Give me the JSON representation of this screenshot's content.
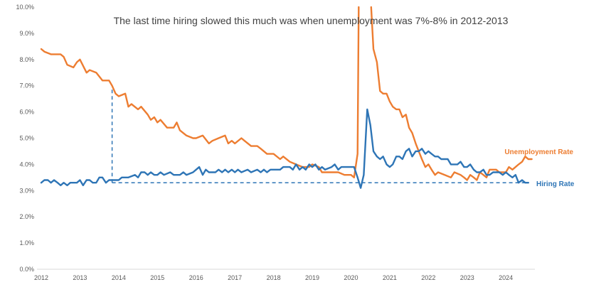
{
  "chart_data": {
    "type": "line",
    "title": "The last time hiring slowed this much was when unemployment was 7%-8% in 2012-2013",
    "xlabel": "",
    "ylabel": "",
    "x_ticks": [
      "2012",
      "2013",
      "2014",
      "2015",
      "2016",
      "2017",
      "2018",
      "2019",
      "2020",
      "2021",
      "2022",
      "2023",
      "2024"
    ],
    "xlim": [
      2012,
      2024.75
    ],
    "ylim": [
      0,
      10
    ],
    "y_ticks": [
      "0.0%",
      "1.0%",
      "2.0%",
      "3.0%",
      "4.0%",
      "5.0%",
      "6.0%",
      "7.0%",
      "8.0%",
      "9.0%",
      "10.0%"
    ],
    "y_tick_values": [
      0,
      1,
      2,
      3,
      4,
      5,
      6,
      7,
      8,
      9,
      10
    ],
    "grid": false,
    "series": [
      {
        "name": "Unemployment Rate",
        "color": "#ED7D31",
        "points": [
          [
            2012.0,
            8.4
          ],
          [
            2012.08,
            8.3
          ],
          [
            2012.25,
            8.2
          ],
          [
            2012.5,
            8.2
          ],
          [
            2012.58,
            8.1
          ],
          [
            2012.67,
            7.8
          ],
          [
            2012.83,
            7.7
          ],
          [
            2012.92,
            7.9
          ],
          [
            2013.0,
            8.0
          ],
          [
            2013.17,
            7.5
          ],
          [
            2013.25,
            7.6
          ],
          [
            2013.42,
            7.5
          ],
          [
            2013.58,
            7.2
          ],
          [
            2013.75,
            7.2
          ],
          [
            2013.83,
            7.0
          ],
          [
            2013.92,
            6.7
          ],
          [
            2014.0,
            6.6
          ],
          [
            2014.17,
            6.7
          ],
          [
            2014.25,
            6.2
          ],
          [
            2014.33,
            6.3
          ],
          [
            2014.5,
            6.1
          ],
          [
            2014.58,
            6.2
          ],
          [
            2014.75,
            5.9
          ],
          [
            2014.83,
            5.7
          ],
          [
            2014.92,
            5.8
          ],
          [
            2015.0,
            5.6
          ],
          [
            2015.08,
            5.7
          ],
          [
            2015.25,
            5.4
          ],
          [
            2015.42,
            5.4
          ],
          [
            2015.5,
            5.6
          ],
          [
            2015.58,
            5.3
          ],
          [
            2015.75,
            5.1
          ],
          [
            2015.92,
            5.0
          ],
          [
            2016.0,
            5.0
          ],
          [
            2016.17,
            5.1
          ],
          [
            2016.33,
            4.8
          ],
          [
            2016.42,
            4.9
          ],
          [
            2016.58,
            5.0
          ],
          [
            2016.75,
            5.1
          ],
          [
            2016.83,
            4.8
          ],
          [
            2016.92,
            4.9
          ],
          [
            2017.0,
            4.8
          ],
          [
            2017.17,
            5.0
          ],
          [
            2017.25,
            4.9
          ],
          [
            2017.42,
            4.7
          ],
          [
            2017.58,
            4.7
          ],
          [
            2017.67,
            4.6
          ],
          [
            2017.83,
            4.4
          ],
          [
            2017.92,
            4.4
          ],
          [
            2018.0,
            4.4
          ],
          [
            2018.17,
            4.2
          ],
          [
            2018.25,
            4.3
          ],
          [
            2018.42,
            4.1
          ],
          [
            2018.58,
            4.0
          ],
          [
            2018.75,
            3.9
          ],
          [
            2018.92,
            3.9
          ],
          [
            2019.0,
            4.0
          ],
          [
            2019.17,
            3.9
          ],
          [
            2019.25,
            3.7
          ],
          [
            2019.5,
            3.7
          ],
          [
            2019.67,
            3.7
          ],
          [
            2019.83,
            3.6
          ],
          [
            2019.92,
            3.6
          ],
          [
            2020.0,
            3.6
          ],
          [
            2020.08,
            3.5
          ],
          [
            2020.17,
            4.4
          ],
          [
            2020.2,
            10.0
          ]
        ],
        "points_after_break": [
          [
            2020.52,
            10.0
          ],
          [
            2020.58,
            8.4
          ],
          [
            2020.67,
            7.9
          ],
          [
            2020.75,
            6.8
          ],
          [
            2020.83,
            6.7
          ],
          [
            2020.92,
            6.7
          ],
          [
            2021.0,
            6.4
          ],
          [
            2021.08,
            6.2
          ],
          [
            2021.17,
            6.1
          ],
          [
            2021.25,
            6.1
          ],
          [
            2021.33,
            5.8
          ],
          [
            2021.42,
            5.9
          ],
          [
            2021.5,
            5.4
          ],
          [
            2021.58,
            5.2
          ],
          [
            2021.67,
            4.8
          ],
          [
            2021.75,
            4.5
          ],
          [
            2021.83,
            4.2
          ],
          [
            2021.92,
            3.9
          ],
          [
            2022.0,
            4.0
          ],
          [
            2022.08,
            3.8
          ],
          [
            2022.17,
            3.6
          ],
          [
            2022.25,
            3.7
          ],
          [
            2022.42,
            3.6
          ],
          [
            2022.58,
            3.5
          ],
          [
            2022.67,
            3.7
          ],
          [
            2022.83,
            3.6
          ],
          [
            2022.92,
            3.5
          ],
          [
            2023.0,
            3.4
          ],
          [
            2023.08,
            3.6
          ],
          [
            2023.17,
            3.5
          ],
          [
            2023.25,
            3.4
          ],
          [
            2023.33,
            3.7
          ],
          [
            2023.42,
            3.6
          ],
          [
            2023.5,
            3.5
          ],
          [
            2023.58,
            3.8
          ],
          [
            2023.75,
            3.8
          ],
          [
            2023.83,
            3.7
          ],
          [
            2023.92,
            3.7
          ],
          [
            2024.0,
            3.7
          ],
          [
            2024.08,
            3.9
          ],
          [
            2024.17,
            3.8
          ],
          [
            2024.25,
            3.9
          ],
          [
            2024.33,
            4.0
          ],
          [
            2024.42,
            4.1
          ],
          [
            2024.5,
            4.3
          ],
          [
            2024.58,
            4.2
          ],
          [
            2024.67,
            4.2
          ]
        ]
      },
      {
        "name": "Hiring Rate",
        "color": "#2E75B6",
        "points": [
          [
            2012.0,
            3.3
          ],
          [
            2012.08,
            3.4
          ],
          [
            2012.17,
            3.4
          ],
          [
            2012.25,
            3.3
          ],
          [
            2012.33,
            3.4
          ],
          [
            2012.42,
            3.3
          ],
          [
            2012.5,
            3.2
          ],
          [
            2012.58,
            3.3
          ],
          [
            2012.67,
            3.2
          ],
          [
            2012.75,
            3.3
          ],
          [
            2012.92,
            3.3
          ],
          [
            2013.0,
            3.4
          ],
          [
            2013.08,
            3.2
          ],
          [
            2013.17,
            3.4
          ],
          [
            2013.25,
            3.4
          ],
          [
            2013.33,
            3.3
          ],
          [
            2013.42,
            3.3
          ],
          [
            2013.5,
            3.5
          ],
          [
            2013.58,
            3.5
          ],
          [
            2013.67,
            3.3
          ],
          [
            2013.75,
            3.4
          ],
          [
            2013.92,
            3.4
          ],
          [
            2014.0,
            3.4
          ],
          [
            2014.08,
            3.5
          ],
          [
            2014.25,
            3.5
          ],
          [
            2014.42,
            3.6
          ],
          [
            2014.5,
            3.5
          ],
          [
            2014.58,
            3.7
          ],
          [
            2014.67,
            3.7
          ],
          [
            2014.75,
            3.6
          ],
          [
            2014.83,
            3.7
          ],
          [
            2014.92,
            3.6
          ],
          [
            2015.0,
            3.6
          ],
          [
            2015.08,
            3.7
          ],
          [
            2015.17,
            3.6
          ],
          [
            2015.33,
            3.7
          ],
          [
            2015.42,
            3.6
          ],
          [
            2015.58,
            3.6
          ],
          [
            2015.67,
            3.7
          ],
          [
            2015.75,
            3.6
          ],
          [
            2015.92,
            3.7
          ],
          [
            2016.0,
            3.8
          ],
          [
            2016.08,
            3.9
          ],
          [
            2016.17,
            3.6
          ],
          [
            2016.25,
            3.8
          ],
          [
            2016.33,
            3.7
          ],
          [
            2016.5,
            3.7
          ],
          [
            2016.58,
            3.8
          ],
          [
            2016.67,
            3.7
          ],
          [
            2016.75,
            3.8
          ],
          [
            2016.83,
            3.7
          ],
          [
            2016.92,
            3.8
          ],
          [
            2017.0,
            3.7
          ],
          [
            2017.08,
            3.8
          ],
          [
            2017.17,
            3.7
          ],
          [
            2017.33,
            3.8
          ],
          [
            2017.42,
            3.7
          ],
          [
            2017.58,
            3.8
          ],
          [
            2017.67,
            3.7
          ],
          [
            2017.75,
            3.8
          ],
          [
            2017.83,
            3.7
          ],
          [
            2017.92,
            3.8
          ],
          [
            2018.0,
            3.8
          ],
          [
            2018.17,
            3.8
          ],
          [
            2018.25,
            3.9
          ],
          [
            2018.42,
            3.9
          ],
          [
            2018.5,
            3.8
          ],
          [
            2018.58,
            4.0
          ],
          [
            2018.67,
            3.8
          ],
          [
            2018.75,
            3.9
          ],
          [
            2018.83,
            3.8
          ],
          [
            2018.92,
            4.0
          ],
          [
            2019.0,
            3.9
          ],
          [
            2019.08,
            4.0
          ],
          [
            2019.17,
            3.8
          ],
          [
            2019.25,
            3.9
          ],
          [
            2019.33,
            3.8
          ],
          [
            2019.5,
            3.9
          ],
          [
            2019.58,
            4.0
          ],
          [
            2019.67,
            3.8
          ],
          [
            2019.75,
            3.9
          ],
          [
            2019.92,
            3.9
          ],
          [
            2020.0,
            3.9
          ],
          [
            2020.08,
            3.9
          ],
          [
            2020.17,
            3.5
          ],
          [
            2020.25,
            3.1
          ],
          [
            2020.33,
            3.6
          ],
          [
            2020.42,
            6.1
          ],
          [
            2020.5,
            5.5
          ],
          [
            2020.58,
            4.5
          ],
          [
            2020.67,
            4.3
          ],
          [
            2020.75,
            4.2
          ],
          [
            2020.83,
            4.3
          ],
          [
            2020.92,
            4.0
          ],
          [
            2021.0,
            3.9
          ],
          [
            2021.08,
            4.0
          ],
          [
            2021.17,
            4.3
          ],
          [
            2021.25,
            4.3
          ],
          [
            2021.33,
            4.2
          ],
          [
            2021.42,
            4.5
          ],
          [
            2021.5,
            4.6
          ],
          [
            2021.58,
            4.3
          ],
          [
            2021.67,
            4.5
          ],
          [
            2021.75,
            4.5
          ],
          [
            2021.83,
            4.6
          ],
          [
            2021.92,
            4.4
          ],
          [
            2022.0,
            4.5
          ],
          [
            2022.08,
            4.4
          ],
          [
            2022.17,
            4.3
          ],
          [
            2022.25,
            4.3
          ],
          [
            2022.33,
            4.2
          ],
          [
            2022.5,
            4.2
          ],
          [
            2022.58,
            4.0
          ],
          [
            2022.75,
            4.0
          ],
          [
            2022.83,
            4.1
          ],
          [
            2022.92,
            3.9
          ],
          [
            2023.0,
            3.9
          ],
          [
            2023.08,
            4.0
          ],
          [
            2023.17,
            3.8
          ],
          [
            2023.25,
            3.7
          ],
          [
            2023.33,
            3.7
          ],
          [
            2023.42,
            3.8
          ],
          [
            2023.5,
            3.6
          ],
          [
            2023.58,
            3.6
          ],
          [
            2023.67,
            3.7
          ],
          [
            2023.75,
            3.7
          ],
          [
            2023.83,
            3.7
          ],
          [
            2023.92,
            3.6
          ],
          [
            2024.0,
            3.7
          ],
          [
            2024.08,
            3.6
          ],
          [
            2024.17,
            3.5
          ],
          [
            2024.25,
            3.6
          ],
          [
            2024.33,
            3.3
          ],
          [
            2024.42,
            3.4
          ],
          [
            2024.5,
            3.3
          ],
          [
            2024.58,
            3.3
          ]
        ]
      }
    ],
    "reference_lines": [
      {
        "kind": "vertical",
        "x": 2013.83,
        "from_y": 3.3,
        "to_y": 6.9,
        "color": "#2E75B6"
      },
      {
        "kind": "horizontal",
        "y": 3.3,
        "from_x": 2013.83,
        "to_x": 2024.6,
        "color": "#2E75B6"
      }
    ]
  }
}
